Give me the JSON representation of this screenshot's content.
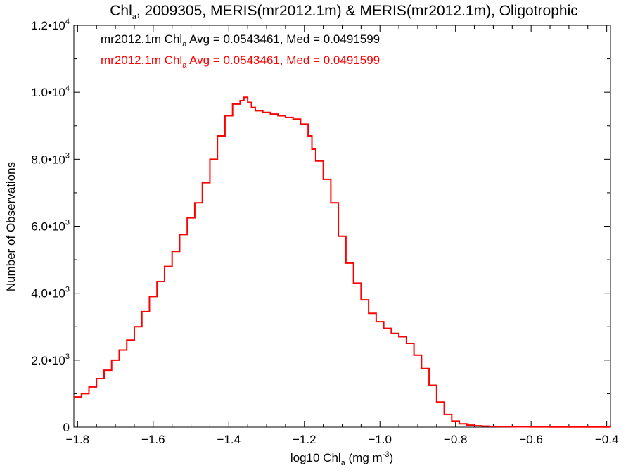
{
  "chart_data": {
    "type": "line",
    "title": {
      "prefix": "Chl",
      "sub": "a",
      "suffix": ", 2009305, MERIS(mr2012.1m) & MERIS(mr2012.1m), Oligotrophic"
    },
    "xlabel": {
      "prefix": "log10 Chl",
      "sub": "a",
      "suffix": " (mg m",
      "sup": "-3",
      "end": ")"
    },
    "ylabel": "Number of Observations",
    "xlim": [
      -1.81,
      -0.39
    ],
    "ylim": [
      0,
      12000
    ],
    "x_ticks": [
      {
        "value": -1.8,
        "label": "−1.8"
      },
      {
        "value": -1.6,
        "label": "−1.6"
      },
      {
        "value": -1.4,
        "label": "−1.4"
      },
      {
        "value": -1.2,
        "label": "−1.2"
      },
      {
        "value": -1.0,
        "label": "−1.0"
      },
      {
        "value": -0.8,
        "label": "−0.8"
      },
      {
        "value": -0.6,
        "label": "−0.6"
      },
      {
        "value": -0.4,
        "label": "−0.4"
      }
    ],
    "y_ticks": [
      {
        "value": 0,
        "label": "0",
        "exp": ""
      },
      {
        "value": 2000,
        "label": "2.0•10",
        "exp": "3"
      },
      {
        "value": 4000,
        "label": "4.0•10",
        "exp": "3"
      },
      {
        "value": 6000,
        "label": "6.0•10",
        "exp": "3"
      },
      {
        "value": 8000,
        "label": "8.0•10",
        "exp": "3"
      },
      {
        "value": 10000,
        "label": "1.0•10",
        "exp": "4"
      },
      {
        "value": 12000,
        "label": "1.2•10",
        "exp": "4"
      }
    ],
    "legend": [
      {
        "prefix": "mr2012.1m Chl",
        "sub": "a",
        "suffix": " Avg = 0.0543461, Med = 0.0491599",
        "color": "#000000"
      },
      {
        "prefix": "mr2012.1m Chl",
        "sub": "a",
        "suffix": " Avg = 0.0543461, Med = 0.0491599",
        "color": "#ff0000"
      }
    ],
    "series": [
      {
        "color": "#ff0000",
        "x": [
          -1.81,
          -1.79,
          -1.77,
          -1.75,
          -1.73,
          -1.71,
          -1.69,
          -1.67,
          -1.65,
          -1.63,
          -1.61,
          -1.59,
          -1.57,
          -1.55,
          -1.53,
          -1.51,
          -1.49,
          -1.47,
          -1.45,
          -1.43,
          -1.41,
          -1.39,
          -1.37,
          -1.36,
          -1.35,
          -1.34,
          -1.33,
          -1.31,
          -1.29,
          -1.27,
          -1.25,
          -1.23,
          -1.21,
          -1.19,
          -1.18,
          -1.17,
          -1.15,
          -1.13,
          -1.11,
          -1.09,
          -1.07,
          -1.05,
          -1.03,
          -1.01,
          -0.99,
          -0.97,
          -0.95,
          -0.93,
          -0.91,
          -0.89,
          -0.87,
          -0.85,
          -0.83,
          -0.81,
          -0.79,
          -0.77,
          -0.75,
          -0.73,
          -0.71,
          -0.69,
          -0.65,
          -0.6,
          -0.55,
          -0.5,
          -0.45,
          -0.39
        ],
        "values": [
          900,
          1000,
          1200,
          1450,
          1700,
          2000,
          2300,
          2600,
          3000,
          3450,
          3900,
          4350,
          4800,
          5250,
          5750,
          6250,
          6700,
          7300,
          8000,
          8700,
          9300,
          9650,
          9750,
          9850,
          9700,
          9550,
          9450,
          9400,
          9350,
          9300,
          9250,
          9200,
          9050,
          8700,
          8300,
          7950,
          7400,
          6700,
          5700,
          4900,
          4300,
          3800,
          3400,
          3150,
          2950,
          2800,
          2700,
          2500,
          2150,
          1750,
          1250,
          750,
          380,
          180,
          100,
          60,
          40,
          30,
          20,
          15,
          10,
          8,
          6,
          5,
          4,
          3
        ]
      }
    ]
  }
}
